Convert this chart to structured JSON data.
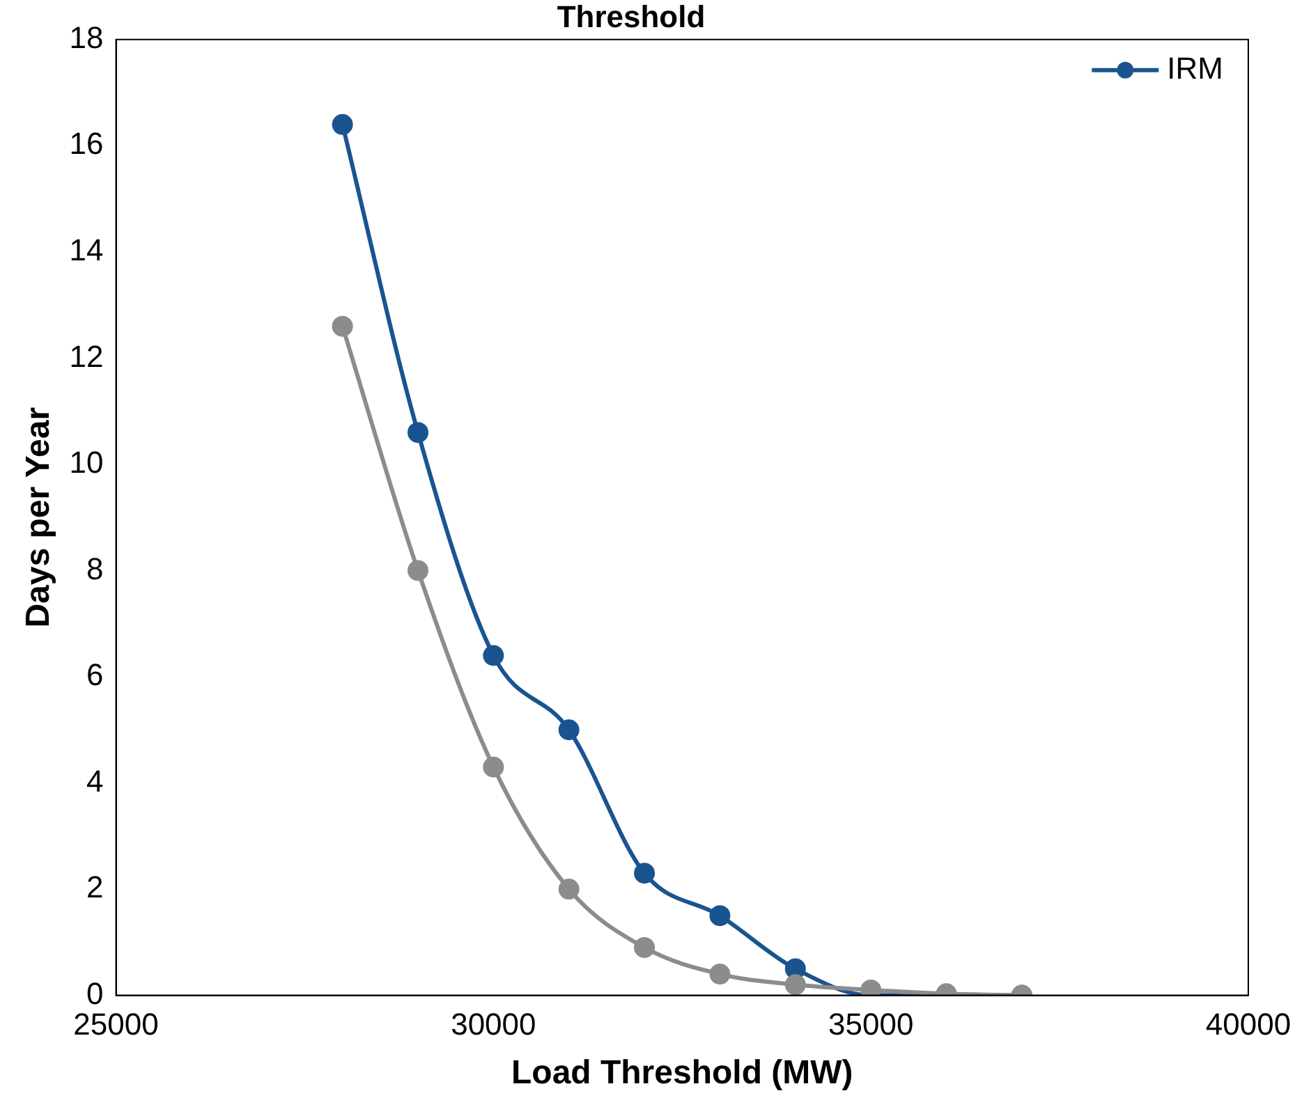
{
  "chart_data": {
    "type": "line",
    "title": "Threshold",
    "xlabel": "Load Threshold (MW)",
    "ylabel": "Days per Year",
    "x": [
      28000,
      29000,
      30000,
      31000,
      32000,
      33000,
      34000,
      35000,
      36000,
      37000
    ],
    "series": [
      {
        "color": "#8c8c8c",
        "values": [
          12.6,
          8.0,
          4.3,
          2.0,
          0.9,
          0.4,
          0.2,
          0.1,
          0.03,
          0.0
        ]
      },
      {
        "name": "IRM",
        "color": "#1a5490",
        "values": [
          16.4,
          10.6,
          6.4,
          5.0,
          2.3,
          1.5,
          0.5,
          0.0,
          0.0,
          0.0
        ]
      }
    ],
    "xlim": [
      25000,
      40000
    ],
    "xticks": [
      25000,
      30000,
      35000,
      40000
    ],
    "ylim": [
      0,
      18
    ],
    "yticks": [
      0,
      2,
      4,
      6,
      8,
      10,
      12,
      14,
      16,
      18
    ],
    "grid": false,
    "legend": "top right",
    "marker": "circle",
    "line_style": "solid"
  }
}
